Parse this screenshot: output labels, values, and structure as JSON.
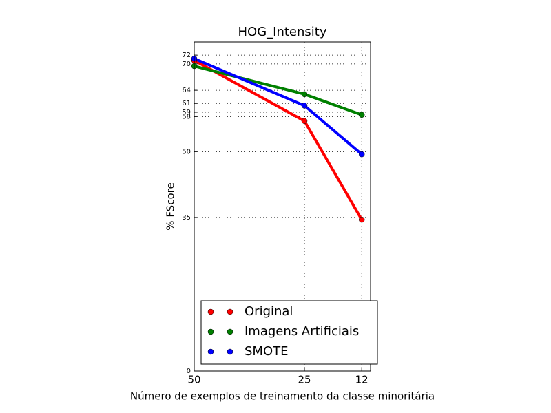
{
  "chart_data": {
    "type": "line",
    "title": "HOG_Intensity",
    "x_label": "Número de exemplos de treinamento da classe minoritária",
    "y_label": "% FScore",
    "x": [
      50,
      25,
      12
    ],
    "series": [
      {
        "name": "Original",
        "color": "#ff0000",
        "values": [
          70.8,
          57.0,
          34.5
        ]
      },
      {
        "name": "Imagens Artificiais",
        "color": "#008000",
        "values": [
          69.5,
          63.1,
          58.4
        ]
      },
      {
        "name": "SMOTE",
        "color": "#0000ff",
        "values": [
          71.2,
          60.5,
          49.4
        ]
      }
    ],
    "xlim": [
      50,
      10
    ],
    "xticks": [
      50,
      25,
      12
    ],
    "ylim": [
      0,
      75
    ],
    "yticks": [
      0,
      35,
      50,
      58,
      59,
      61,
      64,
      70,
      72
    ],
    "grid": true,
    "legend": "lower right"
  }
}
